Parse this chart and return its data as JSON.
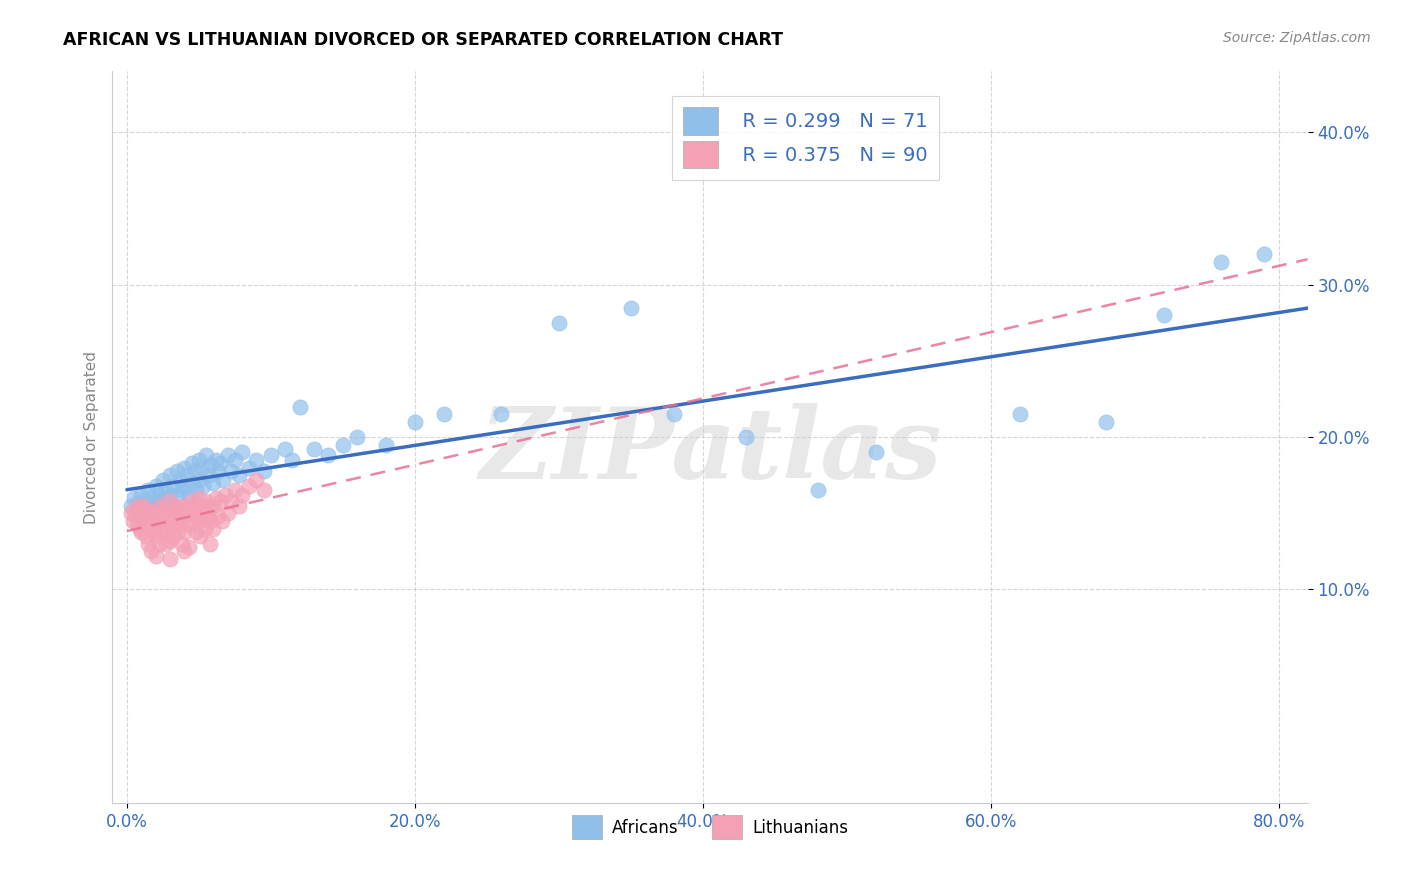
{
  "title": "AFRICAN VS LITHUANIAN DIVORCED OR SEPARATED CORRELATION CHART",
  "source": "Source: ZipAtlas.com",
  "xlabel_ticks": [
    "0.0%",
    "20.0%",
    "40.0%",
    "60.0%",
    "80.0%"
  ],
  "xlabel_tick_vals": [
    0.0,
    0.2,
    0.4,
    0.6,
    0.8
  ],
  "ylabel": "Divorced or Separated",
  "ylabel_ticks": [
    "10.0%",
    "20.0%",
    "30.0%",
    "40.0%"
  ],
  "ylabel_tick_vals": [
    0.1,
    0.2,
    0.3,
    0.4
  ],
  "xlim": [
    -0.01,
    0.82
  ],
  "ylim": [
    -0.04,
    0.44
  ],
  "africans_color": "#90BFEA",
  "lithuanians_color": "#F4A0B5",
  "africans_line_color": "#3A6DBF",
  "lithuanians_line_color": "#E87090",
  "watermark": "ZIPatlas",
  "africans_scatter": [
    [
      0.003,
      0.155
    ],
    [
      0.005,
      0.16
    ],
    [
      0.007,
      0.152
    ],
    [
      0.008,
      0.157
    ],
    [
      0.01,
      0.148
    ],
    [
      0.01,
      0.162
    ],
    [
      0.012,
      0.153
    ],
    [
      0.013,
      0.158
    ],
    [
      0.015,
      0.165
    ],
    [
      0.015,
      0.15
    ],
    [
      0.017,
      0.16
    ],
    [
      0.018,
      0.155
    ],
    [
      0.02,
      0.168
    ],
    [
      0.02,
      0.155
    ],
    [
      0.022,
      0.162
    ],
    [
      0.023,
      0.158
    ],
    [
      0.025,
      0.172
    ],
    [
      0.025,
      0.16
    ],
    [
      0.027,
      0.165
    ],
    [
      0.028,
      0.158
    ],
    [
      0.03,
      0.175
    ],
    [
      0.03,
      0.162
    ],
    [
      0.032,
      0.168
    ],
    [
      0.033,
      0.155
    ],
    [
      0.035,
      0.178
    ],
    [
      0.035,
      0.162
    ],
    [
      0.037,
      0.172
    ],
    [
      0.038,
      0.165
    ],
    [
      0.04,
      0.18
    ],
    [
      0.04,
      0.168
    ],
    [
      0.042,
      0.175
    ],
    [
      0.043,
      0.162
    ],
    [
      0.045,
      0.183
    ],
    [
      0.045,
      0.17
    ],
    [
      0.047,
      0.178
    ],
    [
      0.048,
      0.165
    ],
    [
      0.05,
      0.185
    ],
    [
      0.05,
      0.172
    ],
    [
      0.052,
      0.18
    ],
    [
      0.053,
      0.168
    ],
    [
      0.055,
      0.188
    ],
    [
      0.057,
      0.175
    ],
    [
      0.058,
      0.182
    ],
    [
      0.06,
      0.17
    ],
    [
      0.062,
      0.185
    ],
    [
      0.063,
      0.178
    ],
    [
      0.065,
      0.183
    ],
    [
      0.067,
      0.172
    ],
    [
      0.07,
      0.188
    ],
    [
      0.072,
      0.178
    ],
    [
      0.075,
      0.185
    ],
    [
      0.078,
      0.175
    ],
    [
      0.08,
      0.19
    ],
    [
      0.085,
      0.18
    ],
    [
      0.09,
      0.185
    ],
    [
      0.095,
      0.178
    ],
    [
      0.1,
      0.188
    ],
    [
      0.11,
      0.192
    ],
    [
      0.115,
      0.185
    ],
    [
      0.12,
      0.22
    ],
    [
      0.13,
      0.192
    ],
    [
      0.14,
      0.188
    ],
    [
      0.15,
      0.195
    ],
    [
      0.16,
      0.2
    ],
    [
      0.18,
      0.195
    ],
    [
      0.2,
      0.21
    ],
    [
      0.22,
      0.215
    ],
    [
      0.26,
      0.215
    ],
    [
      0.3,
      0.275
    ],
    [
      0.35,
      0.285
    ],
    [
      0.38,
      0.215
    ],
    [
      0.43,
      0.2
    ],
    [
      0.48,
      0.165
    ],
    [
      0.52,
      0.19
    ],
    [
      0.62,
      0.215
    ],
    [
      0.68,
      0.21
    ],
    [
      0.72,
      0.28
    ],
    [
      0.76,
      0.315
    ],
    [
      0.79,
      0.32
    ]
  ],
  "lithuanians_scatter": [
    [
      0.003,
      0.15
    ],
    [
      0.004,
      0.145
    ],
    [
      0.005,
      0.152
    ],
    [
      0.006,
      0.148
    ],
    [
      0.007,
      0.143
    ],
    [
      0.008,
      0.155
    ],
    [
      0.009,
      0.14
    ],
    [
      0.01,
      0.15
    ],
    [
      0.01,
      0.138
    ],
    [
      0.011,
      0.155
    ],
    [
      0.012,
      0.145
    ],
    [
      0.013,
      0.148
    ],
    [
      0.013,
      0.135
    ],
    [
      0.014,
      0.152
    ],
    [
      0.015,
      0.143
    ],
    [
      0.015,
      0.13
    ],
    [
      0.016,
      0.148
    ],
    [
      0.017,
      0.14
    ],
    [
      0.017,
      0.125
    ],
    [
      0.018,
      0.145
    ],
    [
      0.019,
      0.138
    ],
    [
      0.02,
      0.15
    ],
    [
      0.02,
      0.135
    ],
    [
      0.02,
      0.122
    ],
    [
      0.021,
      0.148
    ],
    [
      0.022,
      0.143
    ],
    [
      0.022,
      0.13
    ],
    [
      0.023,
      0.155
    ],
    [
      0.024,
      0.145
    ],
    [
      0.025,
      0.152
    ],
    [
      0.025,
      0.138
    ],
    [
      0.026,
      0.148
    ],
    [
      0.027,
      0.143
    ],
    [
      0.027,
      0.13
    ],
    [
      0.028,
      0.15
    ],
    [
      0.028,
      0.138
    ],
    [
      0.029,
      0.158
    ],
    [
      0.03,
      0.145
    ],
    [
      0.03,
      0.132
    ],
    [
      0.03,
      0.12
    ],
    [
      0.031,
      0.152
    ],
    [
      0.032,
      0.148
    ],
    [
      0.032,
      0.135
    ],
    [
      0.033,
      0.155
    ],
    [
      0.034,
      0.145
    ],
    [
      0.035,
      0.152
    ],
    [
      0.035,
      0.138
    ],
    [
      0.036,
      0.148
    ],
    [
      0.037,
      0.143
    ],
    [
      0.038,
      0.155
    ],
    [
      0.038,
      0.13
    ],
    [
      0.039,
      0.148
    ],
    [
      0.04,
      0.152
    ],
    [
      0.04,
      0.138
    ],
    [
      0.04,
      0.125
    ],
    [
      0.041,
      0.15
    ],
    [
      0.042,
      0.155
    ],
    [
      0.043,
      0.142
    ],
    [
      0.043,
      0.128
    ],
    [
      0.044,
      0.152
    ],
    [
      0.045,
      0.158
    ],
    [
      0.046,
      0.145
    ],
    [
      0.047,
      0.15
    ],
    [
      0.048,
      0.138
    ],
    [
      0.049,
      0.155
    ],
    [
      0.05,
      0.16
    ],
    [
      0.05,
      0.145
    ],
    [
      0.051,
      0.135
    ],
    [
      0.052,
      0.155
    ],
    [
      0.053,
      0.148
    ],
    [
      0.054,
      0.14
    ],
    [
      0.055,
      0.158
    ],
    [
      0.056,
      0.148
    ],
    [
      0.057,
      0.155
    ],
    [
      0.058,
      0.145
    ],
    [
      0.058,
      0.13
    ],
    [
      0.06,
      0.155
    ],
    [
      0.06,
      0.14
    ],
    [
      0.062,
      0.16
    ],
    [
      0.063,
      0.148
    ],
    [
      0.065,
      0.158
    ],
    [
      0.066,
      0.145
    ],
    [
      0.068,
      0.162
    ],
    [
      0.07,
      0.15
    ],
    [
      0.072,
      0.158
    ],
    [
      0.075,
      0.165
    ],
    [
      0.078,
      0.155
    ],
    [
      0.08,
      0.162
    ],
    [
      0.085,
      0.168
    ],
    [
      0.09,
      0.172
    ],
    [
      0.095,
      0.165
    ]
  ]
}
